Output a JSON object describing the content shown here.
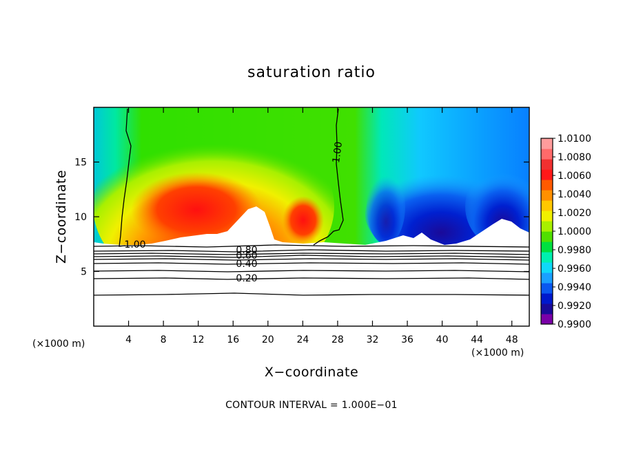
{
  "chart_data": {
    "type": "heatmap",
    "title": "saturation ratio",
    "xlabel": "X−coordinate",
    "ylabel": "Z−coordinate",
    "x_unit": "(×1000 m)",
    "y_unit": "(×1000 m)",
    "xlim": [
      0,
      50
    ],
    "ylim": [
      0,
      20
    ],
    "x_ticks": [
      4,
      8,
      12,
      16,
      20,
      24,
      28,
      32,
      36,
      40,
      44,
      48
    ],
    "x_tick_labels": [
      "4",
      "8",
      "12",
      "16",
      "20",
      "24",
      "28",
      "32",
      "36",
      "40",
      "44",
      "48"
    ],
    "y_ticks": [
      5,
      10,
      15
    ],
    "y_tick_labels": [
      "5",
      "10",
      "15"
    ],
    "colorbar": {
      "min": 0.99,
      "max": 1.01,
      "labels": [
        "1.0100",
        "1.0080",
        "1.0060",
        "1.0040",
        "1.0020",
        "1.0000",
        "0.9980",
        "0.9960",
        "0.9940",
        "0.9920",
        "0.9900"
      ],
      "colors": [
        "#7a00a8",
        "#1a0a99",
        "#0018cc",
        "#0a58f0",
        "#1aa0ff",
        "#10d8f8",
        "#00f0b0",
        "#00e040",
        "#50e000",
        "#a8f000",
        "#f0f000",
        "#ffc800",
        "#ff9000",
        "#ff5a00",
        "#ff1818",
        "#f03030",
        "#ff6a6a",
        "#ff9c9c"
      ]
    },
    "contour_labels": [
      "1.00",
      "1.00",
      "0.80",
      "0.60",
      "0.40",
      "0.20"
    ],
    "footer": "CONTOUR INTERVAL = 1.000E−01"
  }
}
